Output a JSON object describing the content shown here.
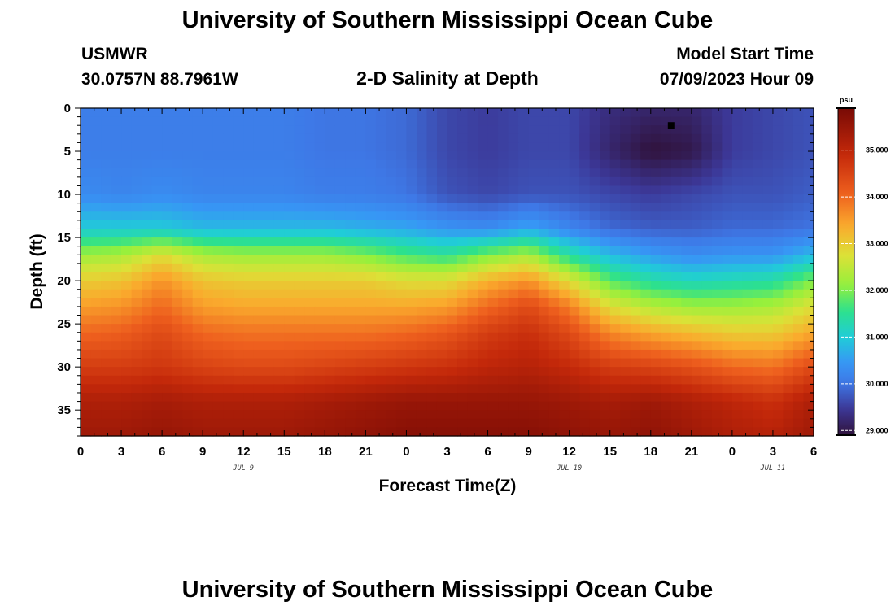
{
  "header": {
    "title": "University of Southern Mississippi Ocean Cube",
    "station": "USMWR",
    "coords": "30.0757N  88.7961W",
    "plot_title": "2-D Salinity at Depth",
    "model_start_label": "Model Start Time",
    "model_start_value": "07/09/2023 Hour 09"
  },
  "footer": {
    "title": "University of Southern Mississippi Ocean Cube"
  },
  "chart_data": {
    "type": "heatmap",
    "title": "2-D Salinity at Depth",
    "xlabel": "Forecast Time(Z)",
    "ylabel": "Depth (ft)",
    "x_range_hours": [
      0,
      54
    ],
    "y_range_ft": [
      0,
      38
    ],
    "y_inverted": true,
    "x_tick_labels": [
      "0",
      "3",
      "6",
      "9",
      "12",
      "15",
      "18",
      "21",
      "0",
      "3",
      "6",
      "9",
      "12",
      "15",
      "18",
      "21",
      "0",
      "3",
      "6"
    ],
    "y_tick_values": [
      0,
      5,
      10,
      15,
      20,
      25,
      30,
      35
    ],
    "y_tick_labels": [
      "0",
      "5",
      "10",
      "15",
      "20",
      "25",
      "30",
      "35"
    ],
    "date_labels": [
      {
        "text": "JUL 9",
        "hour": 12
      },
      {
        "text": "JUL 10",
        "hour": 36
      },
      {
        "text": "JUL 11",
        "hour": 51
      }
    ],
    "colorbar": {
      "unit": "psu",
      "range": [
        28.9,
        35.9
      ],
      "tick_values": [
        29,
        30,
        31,
        32,
        33,
        34,
        35
      ],
      "tick_labels": [
        "29.000",
        "30.000",
        "31.000",
        "32.000",
        "33.000",
        "34.000",
        "35.000"
      ]
    },
    "salinity_grid": {
      "note": "approximate salinity (psu); rows = depth_ft, columns = forecast hour",
      "hours": [
        0,
        3,
        6,
        9,
        12,
        15,
        18,
        21,
        24,
        27,
        30,
        33,
        36,
        39,
        42,
        45,
        48,
        51,
        54
      ],
      "depth_ft": [
        0,
        5,
        10,
        14,
        17,
        20,
        23,
        26,
        30,
        34,
        38
      ],
      "values": [
        [
          30.1,
          30.1,
          30.1,
          30.1,
          30.1,
          30.1,
          30.0,
          30.0,
          29.9,
          29.6,
          29.5,
          29.6,
          29.6,
          29.3,
          29.2,
          29.2,
          29.5,
          29.6,
          29.7
        ],
        [
          30.1,
          30.1,
          30.1,
          30.1,
          30.1,
          30.1,
          30.0,
          30.0,
          29.9,
          29.6,
          29.5,
          29.6,
          29.6,
          29.2,
          28.9,
          29.0,
          29.5,
          29.6,
          29.7
        ],
        [
          30.3,
          30.2,
          30.3,
          30.2,
          30.2,
          30.2,
          30.1,
          30.1,
          30.0,
          29.7,
          29.6,
          29.7,
          29.7,
          29.6,
          29.5,
          29.6,
          29.7,
          29.7,
          29.8
        ],
        [
          31.0,
          31.0,
          31.0,
          30.8,
          30.8,
          30.8,
          30.8,
          30.7,
          30.6,
          30.4,
          30.3,
          30.6,
          30.2,
          29.9,
          29.8,
          29.8,
          29.9,
          29.9,
          30.0
        ],
        [
          32.2,
          32.3,
          32.8,
          32.3,
          32.2,
          32.2,
          32.2,
          32.0,
          31.7,
          31.5,
          32.0,
          32.3,
          31.4,
          30.8,
          30.5,
          30.3,
          30.4,
          30.4,
          30.8
        ],
        [
          33.0,
          33.1,
          33.6,
          33.1,
          33.0,
          33.0,
          33.0,
          33.0,
          32.8,
          32.8,
          33.3,
          33.6,
          32.8,
          31.8,
          31.4,
          31.2,
          31.3,
          31.4,
          32.0
        ],
        [
          33.5,
          33.6,
          34.0,
          33.5,
          33.4,
          33.4,
          33.4,
          33.4,
          33.4,
          33.5,
          34.0,
          34.4,
          33.8,
          32.8,
          32.4,
          32.2,
          32.2,
          32.3,
          32.8
        ],
        [
          34.0,
          34.1,
          34.4,
          34.0,
          33.9,
          33.9,
          33.9,
          33.9,
          34.0,
          34.2,
          34.6,
          34.8,
          34.4,
          33.7,
          33.4,
          33.2,
          33.0,
          33.0,
          33.4
        ],
        [
          34.6,
          34.6,
          34.7,
          34.5,
          34.4,
          34.4,
          34.5,
          34.6,
          34.7,
          34.8,
          35.0,
          35.1,
          34.9,
          34.6,
          34.5,
          34.3,
          34.0,
          33.9,
          34.4
        ],
        [
          35.2,
          35.2,
          35.3,
          35.2,
          35.2,
          35.2,
          35.3,
          35.4,
          35.5,
          35.5,
          35.5,
          35.5,
          35.4,
          35.3,
          35.4,
          35.2,
          35.0,
          34.8,
          35.2
        ],
        [
          35.4,
          35.4,
          35.5,
          35.4,
          35.4,
          35.4,
          35.5,
          35.6,
          35.7,
          35.7,
          35.7,
          35.7,
          35.6,
          35.5,
          35.6,
          35.4,
          35.2,
          35.1,
          35.4
        ]
      ]
    },
    "marker": {
      "hour": 43.5,
      "depth_ft": 2
    }
  }
}
